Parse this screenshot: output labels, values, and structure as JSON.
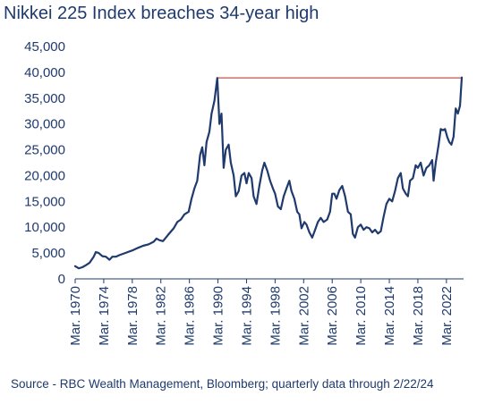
{
  "chart_data": {
    "type": "line",
    "title": "Nikkei 225 Index breaches 34-year high",
    "source": "Source - RBC Wealth Management, Bloomberg; quarterly data through 2/22/24",
    "ylim": [
      0,
      45000
    ],
    "yticks": [
      0,
      5000,
      10000,
      15000,
      20000,
      25000,
      30000,
      35000,
      40000,
      45000
    ],
    "ytick_labels": [
      "0",
      "5,000",
      "10,000",
      "15,000",
      "20,000",
      "25,000",
      "30,000",
      "35,000",
      "40,000",
      "45,000"
    ],
    "xlim": [
      1970.0,
      2024.4
    ],
    "xticks": [
      1970,
      1974,
      1978,
      1982,
      1986,
      1990,
      1994,
      1998,
      2002,
      2006,
      2010,
      2014,
      2018,
      2022
    ],
    "xtick_labels": [
      "Mar. 1970",
      "Mar. 1974",
      "Mar. 1978",
      "Mar. 1982",
      "Mar. 1986",
      "Mar. 1990",
      "Mar. 1994",
      "Mar. 1998",
      "Mar. 2002",
      "Mar. 2006",
      "Mar. 2010",
      "Mar. 2014",
      "Mar. 2018",
      "Mar. 2022"
    ],
    "grid": false,
    "legend": "none",
    "reference_line": {
      "value": 38916,
      "color": "#c0504d"
    },
    "series": [
      {
        "color": "#1f3a6d",
        "points": [
          [
            1970.0,
            2450
          ],
          [
            1970.5,
            2050
          ],
          [
            1971.0,
            2250
          ],
          [
            1971.5,
            2650
          ],
          [
            1972.0,
            3100
          ],
          [
            1972.6,
            4300
          ],
          [
            1972.9,
            5200
          ],
          [
            1973.3,
            5000
          ],
          [
            1973.8,
            4400
          ],
          [
            1974.3,
            4300
          ],
          [
            1974.8,
            3700
          ],
          [
            1975.2,
            4300
          ],
          [
            1975.7,
            4300
          ],
          [
            1976.2,
            4600
          ],
          [
            1977.0,
            5000
          ],
          [
            1978.0,
            5500
          ],
          [
            1978.8,
            6000
          ],
          [
            1979.5,
            6400
          ],
          [
            1980.3,
            6700
          ],
          [
            1981.0,
            7200
          ],
          [
            1981.4,
            7800
          ],
          [
            1981.8,
            7500
          ],
          [
            1982.3,
            7300
          ],
          [
            1983.0,
            8500
          ],
          [
            1983.8,
            9800
          ],
          [
            1984.3,
            11000
          ],
          [
            1984.8,
            11500
          ],
          [
            1985.3,
            12500
          ],
          [
            1985.9,
            13000
          ],
          [
            1986.3,
            15500
          ],
          [
            1986.7,
            17500
          ],
          [
            1987.1,
            19000
          ],
          [
            1987.5,
            24000
          ],
          [
            1987.8,
            25500
          ],
          [
            1988.1,
            22000
          ],
          [
            1988.4,
            26500
          ],
          [
            1988.8,
            28500
          ],
          [
            1989.1,
            32000
          ],
          [
            1989.5,
            34500
          ],
          [
            1989.9,
            38916
          ],
          [
            1990.2,
            30000
          ],
          [
            1990.5,
            32000
          ],
          [
            1990.8,
            21500
          ],
          [
            1991.1,
            25000
          ],
          [
            1991.5,
            26000
          ],
          [
            1991.8,
            22500
          ],
          [
            1992.2,
            20000
          ],
          [
            1992.5,
            16000
          ],
          [
            1992.9,
            17000
          ],
          [
            1993.3,
            20000
          ],
          [
            1993.7,
            20500
          ],
          [
            1994.0,
            18500
          ],
          [
            1994.3,
            20500
          ],
          [
            1994.7,
            19500
          ],
          [
            1995.0,
            16000
          ],
          [
            1995.4,
            14500
          ],
          [
            1995.8,
            18000
          ],
          [
            1996.2,
            21000
          ],
          [
            1996.5,
            22500
          ],
          [
            1996.9,
            21000
          ],
          [
            1997.3,
            19000
          ],
          [
            1997.7,
            17500
          ],
          [
            1998.0,
            16500
          ],
          [
            1998.4,
            14000
          ],
          [
            1998.8,
            13500
          ],
          [
            1999.2,
            16000
          ],
          [
            1999.6,
            17500
          ],
          [
            2000.0,
            19000
          ],
          [
            2000.3,
            17000
          ],
          [
            2000.7,
            15500
          ],
          [
            2001.1,
            13000
          ],
          [
            2001.4,
            12500
          ],
          [
            2001.7,
            9800
          ],
          [
            2002.1,
            11000
          ],
          [
            2002.4,
            10500
          ],
          [
            2002.8,
            9000
          ],
          [
            2003.2,
            8000
          ],
          [
            2003.6,
            9500
          ],
          [
            2004.0,
            11000
          ],
          [
            2004.4,
            11800
          ],
          [
            2004.8,
            11000
          ],
          [
            2005.3,
            11500
          ],
          [
            2005.7,
            13000
          ],
          [
            2006.0,
            16500
          ],
          [
            2006.3,
            16500
          ],
          [
            2006.6,
            15500
          ],
          [
            2007.0,
            17200
          ],
          [
            2007.4,
            18000
          ],
          [
            2007.8,
            16000
          ],
          [
            2008.2,
            13000
          ],
          [
            2008.6,
            12500
          ],
          [
            2008.9,
            8700
          ],
          [
            2009.2,
            8000
          ],
          [
            2009.6,
            10000
          ],
          [
            2010.0,
            10500
          ],
          [
            2010.4,
            9500
          ],
          [
            2010.8,
            10000
          ],
          [
            2011.2,
            9800
          ],
          [
            2011.6,
            9000
          ],
          [
            2012.0,
            9500
          ],
          [
            2012.4,
            8800
          ],
          [
            2012.8,
            9200
          ],
          [
            2013.2,
            12000
          ],
          [
            2013.6,
            14500
          ],
          [
            2014.0,
            15500
          ],
          [
            2014.4,
            15000
          ],
          [
            2014.8,
            17000
          ],
          [
            2015.2,
            19500
          ],
          [
            2015.6,
            20500
          ],
          [
            2015.9,
            17500
          ],
          [
            2016.3,
            16500
          ],
          [
            2016.6,
            16000
          ],
          [
            2016.9,
            19000
          ],
          [
            2017.3,
            19500
          ],
          [
            2017.7,
            22000
          ],
          [
            2018.0,
            21500
          ],
          [
            2018.4,
            22500
          ],
          [
            2018.8,
            20000
          ],
          [
            2019.2,
            21500
          ],
          [
            2019.6,
            22000
          ],
          [
            2020.0,
            23000
          ],
          [
            2020.2,
            19000
          ],
          [
            2020.5,
            22500
          ],
          [
            2020.9,
            26000
          ],
          [
            2021.2,
            29000
          ],
          [
            2021.5,
            28800
          ],
          [
            2021.8,
            29000
          ],
          [
            2022.1,
            27500
          ],
          [
            2022.4,
            26500
          ],
          [
            2022.7,
            26000
          ],
          [
            2023.0,
            27500
          ],
          [
            2023.3,
            33000
          ],
          [
            2023.6,
            32000
          ],
          [
            2023.9,
            33500
          ],
          [
            2024.15,
            39000
          ]
        ]
      }
    ]
  }
}
